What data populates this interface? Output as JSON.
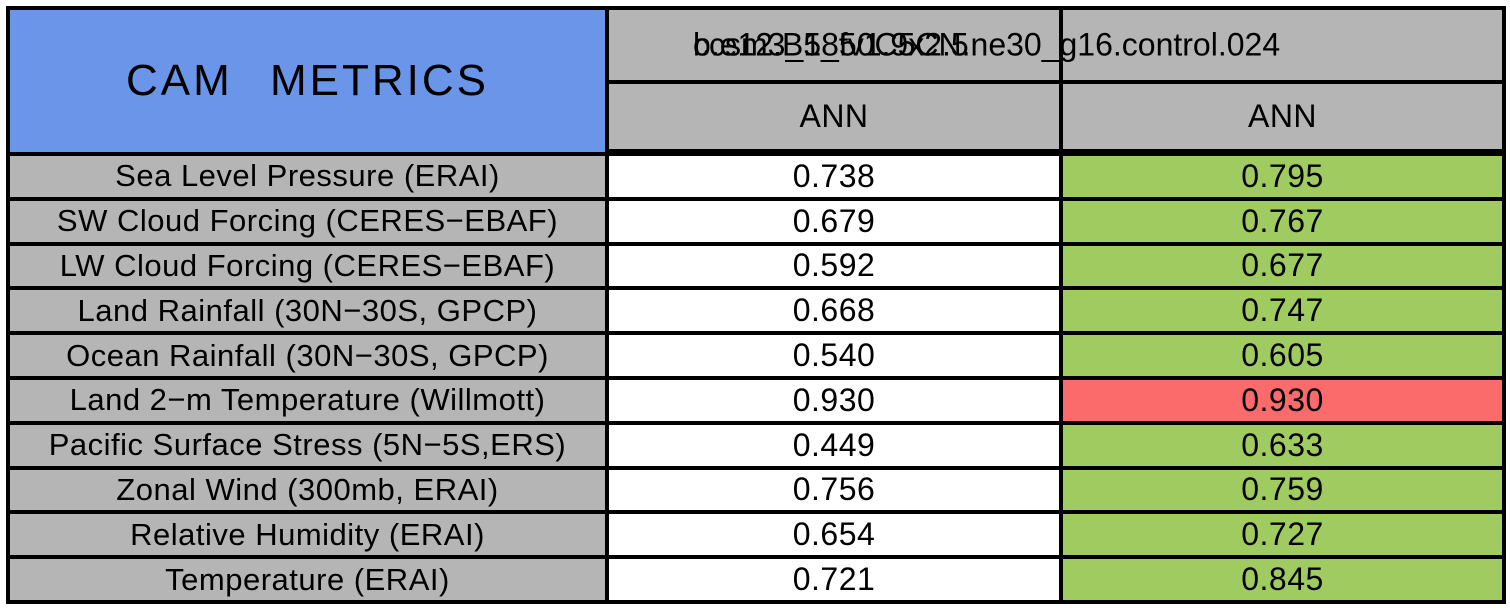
{
  "table": {
    "title": "CAM METRICS",
    "header": {
      "case_names": [
        "ccsm3_5_fv1.9x2.5",
        "b.e12.B1850C5CN.ne30_g16.control.024"
      ],
      "season_left": "ANN",
      "season_right": "ANN"
    },
    "colors": {
      "title_blue": "#6a95e8",
      "header_gray": "#b5b5b5",
      "improved_green": "#9fcb60",
      "degraded_red": "#fc6b6b"
    },
    "rows": [
      {
        "metric": "Sea Level Pressure (ERAI)",
        "control": "0.738",
        "test": "0.795",
        "test_bg": "#9fcb60"
      },
      {
        "metric": "SW Cloud Forcing (CERES−EBAF)",
        "control": "0.679",
        "test": "0.767",
        "test_bg": "#9fcb60"
      },
      {
        "metric": "LW Cloud Forcing (CERES−EBAF)",
        "control": "0.592",
        "test": "0.677",
        "test_bg": "#9fcb60"
      },
      {
        "metric": "Land Rainfall (30N−30S, GPCP)",
        "control": "0.668",
        "test": "0.747",
        "test_bg": "#9fcb60"
      },
      {
        "metric": "Ocean Rainfall (30N−30S, GPCP)",
        "control": "0.540",
        "test": "0.605",
        "test_bg": "#9fcb60"
      },
      {
        "metric": "Land 2−m Temperature (Willmott)",
        "control": "0.930",
        "test": "0.930",
        "test_bg": "#fc6b6b"
      },
      {
        "metric": "Pacific Surface Stress (5N−5S,ERS)",
        "control": "0.449",
        "test": "0.633",
        "test_bg": "#9fcb60"
      },
      {
        "metric": "Zonal Wind (300mb, ERAI)",
        "control": "0.756",
        "test": "0.759",
        "test_bg": "#9fcb60"
      },
      {
        "metric": "Relative Humidity (ERAI)",
        "control": "0.654",
        "test": "0.727",
        "test_bg": "#9fcb60"
      },
      {
        "metric": "Temperature (ERAI)",
        "control": "0.721",
        "test": "0.845",
        "test_bg": "#9fcb60"
      }
    ]
  },
  "chart_data": {
    "type": "table",
    "title": "CAM METRICS",
    "header_case_names_overlaid": [
      "ccsm3_5_fv1.9x2.5",
      "b.e12.B1850C5CN.ne30_g16.control.024"
    ],
    "column_subheaders": [
      "ANN",
      "ANN"
    ],
    "cell_color_legend": {
      "green": "#9fcb60",
      "red": "#fc6b6b",
      "plain": "#ffffff"
    },
    "rows": [
      {
        "metric": "Sea Level Pressure (ERAI)",
        "values": [
          0.738,
          0.795
        ],
        "second_cell_color": "green"
      },
      {
        "metric": "SW Cloud Forcing (CERES−EBAF)",
        "values": [
          0.679,
          0.767
        ],
        "second_cell_color": "green"
      },
      {
        "metric": "LW Cloud Forcing (CERES−EBAF)",
        "values": [
          0.592,
          0.677
        ],
        "second_cell_color": "green"
      },
      {
        "metric": "Land Rainfall (30N−30S, GPCP)",
        "values": [
          0.668,
          0.747
        ],
        "second_cell_color": "green"
      },
      {
        "metric": "Ocean Rainfall (30N−30S, GPCP)",
        "values": [
          0.54,
          0.605
        ],
        "second_cell_color": "green"
      },
      {
        "metric": "Land 2−m Temperature (Willmott)",
        "values": [
          0.93,
          0.93
        ],
        "second_cell_color": "red"
      },
      {
        "metric": "Pacific Surface Stress (5N−5S,ERS)",
        "values": [
          0.449,
          0.633
        ],
        "second_cell_color": "green"
      },
      {
        "metric": "Zonal Wind (300mb, ERAI)",
        "values": [
          0.756,
          0.759
        ],
        "second_cell_color": "green"
      },
      {
        "metric": "Relative Humidity (ERAI)",
        "values": [
          0.654,
          0.727
        ],
        "second_cell_color": "green"
      },
      {
        "metric": "Temperature (ERAI)",
        "values": [
          0.721,
          0.845
        ],
        "second_cell_color": "green"
      }
    ]
  }
}
